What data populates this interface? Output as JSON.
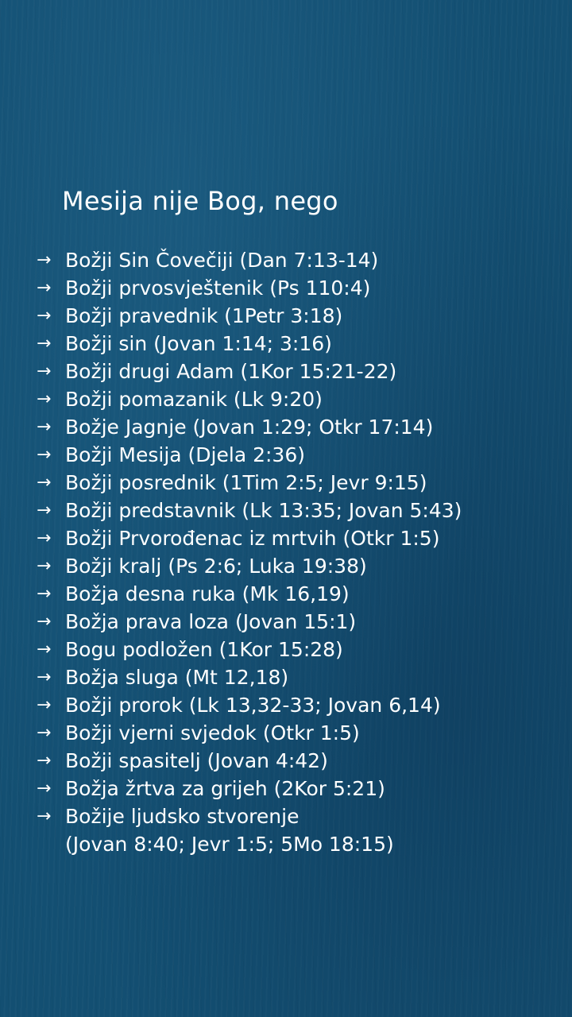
{
  "title": "Mesija nije Bog, nego",
  "bullet_icon": "right-arrow",
  "items": [
    "Božji Sin Čovečiji (Dan 7:13-14)",
    "Božji prvosvještenik (Ps 110:4)",
    "Božji pravednik (1Petr 3:18)",
    "Božji sin (Jovan 1:14; 3:16)",
    "Božji drugi Adam (1Kor 15:21-22)",
    "Božji pomazanik (Lk 9:20)",
    "Božje Jagnje (Jovan 1:29; Otkr 17:14)",
    "Božji Mesija (Djela 2:36)",
    "Božji posrednik (1Tim 2:5; Jevr 9:15)",
    "Božji predstavnik (Lk 13:35; Jovan 5:43)",
    "Božji Prvorođenac iz mrtvih (Otkr 1:5)",
    "Božji kralj (Ps 2:6; Luka 19:38)",
    "Božja desna ruka (Mk 16,19)",
    "Božja prava loza (Jovan 15:1)",
    "Bogu podložen (1Kor 15:28)",
    "Božja sluga (Mt 12,18)",
    "Božji prorok (Lk 13,32-33; Jovan 6,14)",
    "Božji vjerni svjedok (Otkr 1:5)",
    "Božji spasitelj (Jovan 4:42)",
    "Božja žrtva za grijeh (2Kor 5:21)",
    "Božije ljudsko stvorenje"
  ],
  "last_item_continuation": "(Jovan 8:40; Jevr 1:5; 5Mo 18:15)",
  "colors": {
    "background": "#134f72",
    "text": "#ffffff"
  }
}
